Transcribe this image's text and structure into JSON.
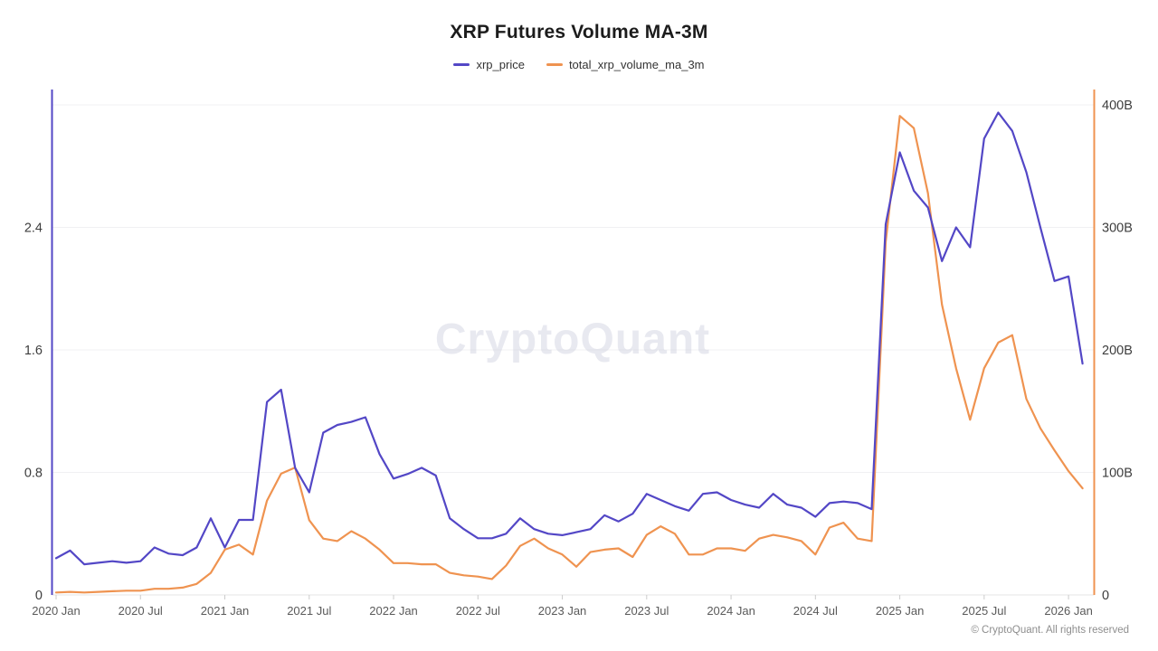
{
  "header": {
    "title": "XRP Futures Volume MA-3M"
  },
  "legend": [
    {
      "label": "xrp_price",
      "color": "#5347c6"
    },
    {
      "label": "total_xrp_volume_ma_3m",
      "color": "#ef9350"
    }
  ],
  "watermark": "CryptoQuant",
  "footer": "© CryptoQuant. All rights reserved",
  "chart_data": {
    "type": "line",
    "title": "XRP Futures Volume MA-3M",
    "x": [
      "2020 Jan",
      "2020 Feb",
      "2020 Mar",
      "2020 Apr",
      "2020 May",
      "2020 Jun",
      "2020 Jul",
      "2020 Aug",
      "2020 Sep",
      "2020 Oct",
      "2020 Nov",
      "2020 Dec",
      "2021 Jan",
      "2021 Feb",
      "2021 Mar",
      "2021 Apr",
      "2021 May",
      "2021 Jun",
      "2021 Jul",
      "2021 Aug",
      "2021 Sep",
      "2021 Oct",
      "2021 Nov",
      "2021 Dec",
      "2022 Jan",
      "2022 Feb",
      "2022 Mar",
      "2022 Apr",
      "2022 May",
      "2022 Jun",
      "2022 Jul",
      "2022 Aug",
      "2022 Sep",
      "2022 Oct",
      "2022 Nov",
      "2022 Dec",
      "2023 Jan",
      "2023 Feb",
      "2023 Mar",
      "2023 Apr",
      "2023 May",
      "2023 Jun",
      "2023 Jul",
      "2023 Aug",
      "2023 Sep",
      "2023 Oct",
      "2023 Nov",
      "2023 Dec",
      "2024 Jan",
      "2024 Feb",
      "2024 Mar",
      "2024 Apr",
      "2024 May",
      "2024 Jun",
      "2024 Jul",
      "2024 Aug",
      "2024 Sep",
      "2024 Oct",
      "2024 Nov",
      "2024 Dec",
      "2025 Jan",
      "2025 Feb",
      "2025 Mar",
      "2025 Apr",
      "2025 May",
      "2025 Jun",
      "2025 Jul",
      "2025 Aug",
      "2025 Sep",
      "2025 Oct",
      "2025 Nov",
      "2025 Dec",
      "2026 Jan",
      "2026 Feb"
    ],
    "x_tick_every": 6,
    "series": [
      {
        "name": "xrp_price",
        "axis": "left",
        "color": "#5347c6",
        "values": [
          0.24,
          0.29,
          0.2,
          0.21,
          0.22,
          0.21,
          0.22,
          0.31,
          0.27,
          0.26,
          0.31,
          0.5,
          0.31,
          0.49,
          0.49,
          1.26,
          1.34,
          0.83,
          0.67,
          1.06,
          1.11,
          1.13,
          1.16,
          0.92,
          0.76,
          0.79,
          0.83,
          0.78,
          0.5,
          0.43,
          0.37,
          0.37,
          0.4,
          0.5,
          0.43,
          0.4,
          0.39,
          0.41,
          0.43,
          0.52,
          0.48,
          0.53,
          0.66,
          0.62,
          0.58,
          0.55,
          0.66,
          0.67,
          0.62,
          0.59,
          0.57,
          0.66,
          0.59,
          0.57,
          0.51,
          0.6,
          0.61,
          0.6,
          0.56,
          2.42,
          2.89,
          2.64,
          2.53,
          2.18,
          2.4,
          2.27,
          2.98,
          3.15,
          3.03,
          2.76,
          2.4,
          2.05,
          2.08,
          1.51
        ]
      },
      {
        "name": "total_xrp_volume_ma_3m",
        "axis": "right",
        "unit": "billions",
        "color": "#ef9350",
        "values": [
          2,
          2.5,
          2,
          2.5,
          3,
          3.5,
          3.5,
          5,
          5,
          6,
          9,
          18,
          37,
          41,
          33,
          77,
          99,
          104,
          61,
          46,
          44,
          52,
          46,
          37,
          26,
          26,
          25,
          25,
          18,
          16,
          15,
          13,
          24,
          40,
          46,
          38,
          33,
          23,
          35,
          37,
          38,
          31,
          49,
          56,
          50,
          33,
          33,
          38,
          38,
          36,
          46,
          49,
          47,
          44,
          33,
          55,
          59,
          46,
          44,
          288,
          391,
          381,
          328,
          237,
          185,
          143,
          185,
          206,
          212,
          160,
          136,
          118,
          101,
          87
        ]
      }
    ],
    "left_axis": {
      "ticks": [
        0,
        0.8,
        1.6,
        2.4
      ],
      "labels": [
        "0",
        "0.8",
        "1.6",
        "2.4"
      ],
      "max": 3.2,
      "color": "#5347c6"
    },
    "right_axis": {
      "ticks": [
        0,
        100,
        200,
        300,
        400
      ],
      "labels": [
        "0",
        "100B",
        "200B",
        "300B",
        "400B"
      ],
      "max": 400,
      "color": "#ef9350"
    },
    "grid": true,
    "legend_position": "top"
  }
}
